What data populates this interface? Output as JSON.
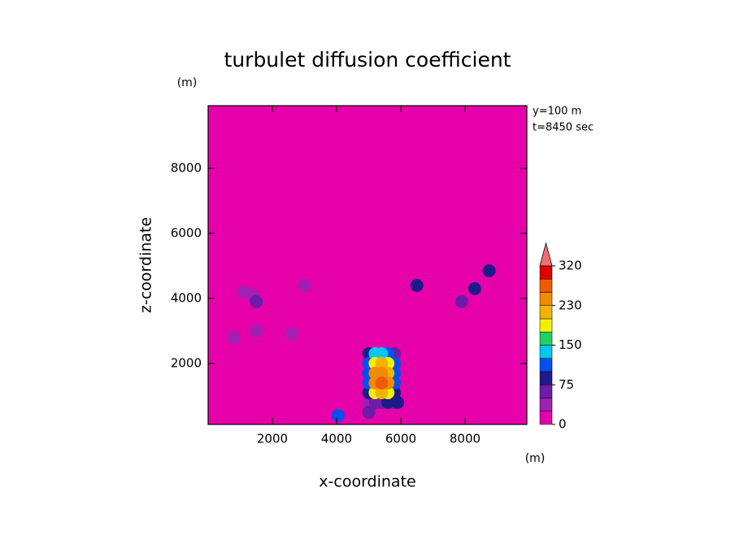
{
  "chart_data": {
    "type": "contour",
    "title": "turbulet diffusion coefficient",
    "x_label": "x-coordinate",
    "y_label": "z-coordinate",
    "x_unit": "(m)",
    "y_unit": "(m)",
    "annotations": [
      "y=100 m",
      "t=8450 sec"
    ],
    "xlim": [
      0,
      9925
    ],
    "ylim": [
      125,
      9925
    ],
    "xticks": [
      2000,
      4000,
      6000,
      8000
    ],
    "yticks": [
      2000,
      4000,
      6000,
      8000
    ],
    "x": [
      5000,
      5200,
      5400,
      5600,
      5800,
      5000,
      5200,
      5400,
      5600,
      5800,
      5000,
      5200,
      5400,
      5600,
      5800,
      5000,
      5200,
      5400,
      5600,
      5800,
      5000,
      5200,
      5400,
      5600,
      5800,
      5000,
      5200,
      5400,
      5600,
      5800,
      1100,
      1400,
      1500,
      800,
      1500,
      2600,
      3000,
      4050,
      5000,
      5900,
      6500,
      7900,
      8300,
      8750
    ],
    "y": [
      2300,
      2300,
      2300,
      2300,
      2300,
      2000,
      2000,
      2000,
      2000,
      2000,
      1700,
      1700,
      1700,
      1700,
      1700,
      1400,
      1400,
      1400,
      1400,
      1400,
      1100,
      1100,
      1100,
      1100,
      1100,
      800,
      800,
      800,
      800,
      800,
      4200,
      4100,
      3900,
      2800,
      3000,
      2900,
      4400,
      400,
      500,
      800,
      4400,
      3900,
      4300,
      4850
    ],
    "values": [
      80,
      130,
      140,
      120,
      70,
      110,
      180,
      200,
      190,
      100,
      120,
      230,
      250,
      220,
      110,
      120,
      240,
      260,
      230,
      110,
      90,
      190,
      210,
      180,
      90,
      40,
      60,
      70,
      90,
      60,
      40,
      40,
      70,
      40,
      30,
      30,
      40,
      100,
      60,
      80,
      90,
      60,
      80,
      90
    ],
    "colorbar": {
      "levels": [
        0,
        25,
        50,
        75,
        100,
        125,
        150,
        175,
        200,
        230,
        260,
        290,
        320
      ],
      "colors": [
        "#e600aa",
        "#a020b4",
        "#6c1ca8",
        "#1e1a8c",
        "#0050f0",
        "#00c8f0",
        "#20d060",
        "#f0f000",
        "#f0b400",
        "#f08c00",
        "#f05a00",
        "#e00000"
      ],
      "extend_color": "#f07070",
      "ticks": [
        0,
        75,
        150,
        230,
        320
      ]
    }
  }
}
